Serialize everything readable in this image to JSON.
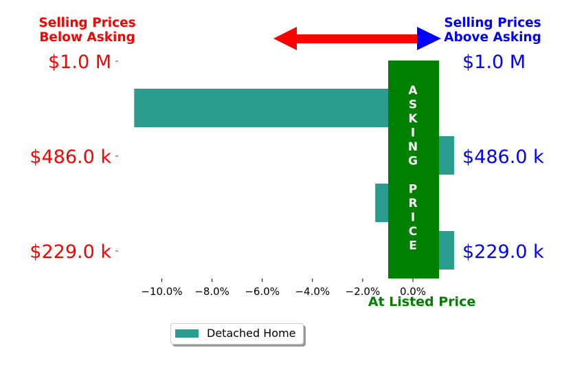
{
  "chart_data": {
    "type": "bar",
    "orientation": "horizontal",
    "header_left": [
      "Selling Prices",
      "Below Asking"
    ],
    "header_right": [
      "Selling Prices",
      "Above Asking"
    ],
    "price_labels": [
      "$1.0 M",
      "$486.0 k",
      "$229.0 k"
    ],
    "center_band_label": "ASKING  PRICE",
    "center_band_letters": [
      "A",
      "S",
      "K",
      "I",
      "N",
      "G",
      "",
      "P",
      "R",
      "I",
      "C",
      "E"
    ],
    "at_listed_label": "At Listed Price",
    "xlim": [
      -0.115,
      0.012
    ],
    "xticks": [
      -0.1,
      -0.08,
      -0.06,
      -0.04,
      -0.02,
      0.0
    ],
    "xtick_labels": [
      "−10.0%",
      "−8.0%",
      "−6.0%",
      "−4.0%",
      "−2.0%",
      "0.0%"
    ],
    "series": [
      {
        "name": "Detached Home",
        "color": "#2a9d8f",
        "values": [
          -0.111,
          0.012,
          -0.015,
          0.012
        ]
      }
    ],
    "colors": {
      "below": "#ff0000",
      "above": "#0000ff",
      "band": "#008000",
      "bar": "#2a9d8f"
    },
    "legend_position": "bottom-center"
  }
}
